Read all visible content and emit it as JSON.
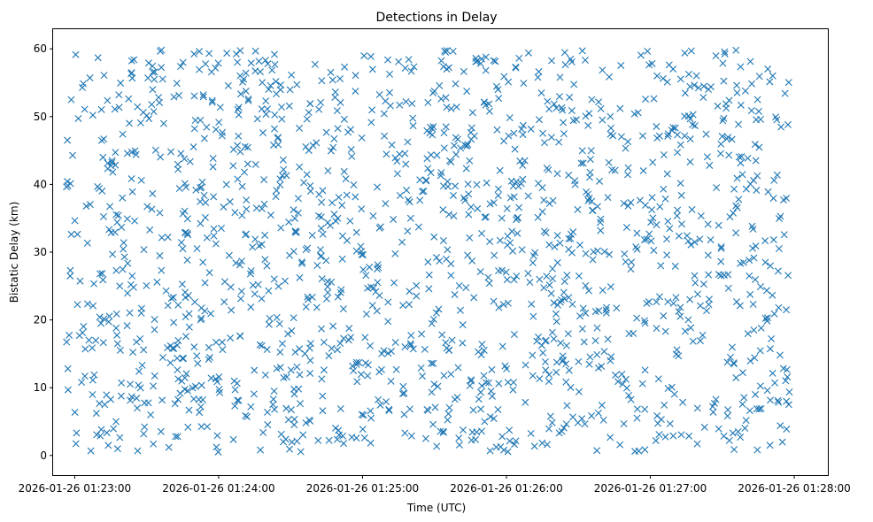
{
  "chart_data": {
    "type": "scatter",
    "title": "Detections in Delay",
    "xlabel": "Time (UTC)",
    "ylabel": "Bistatic Delay (km)",
    "marker": "x",
    "marker_color": "#1f77b4",
    "grid": false,
    "xlim": [
      "2026-01-26 01:22:51",
      "2026-01-26 01:28:14"
    ],
    "ylim": [
      -2.9,
      62.9
    ],
    "x_ticks": [
      "2026-01-26 01:23:00",
      "2026-01-26 01:24:00",
      "2026-01-26 01:25:00",
      "2026-01-26 01:26:00",
      "2026-01-26 01:27:00",
      "2026-01-26 01:28:00"
    ],
    "y_ticks": [
      0,
      10,
      20,
      30,
      40,
      50,
      60
    ],
    "x_range": [
      "2026-01-26 01:22:56",
      "2026-01-26 01:27:58"
    ],
    "y_range": [
      0.5,
      59.9
    ]
  }
}
